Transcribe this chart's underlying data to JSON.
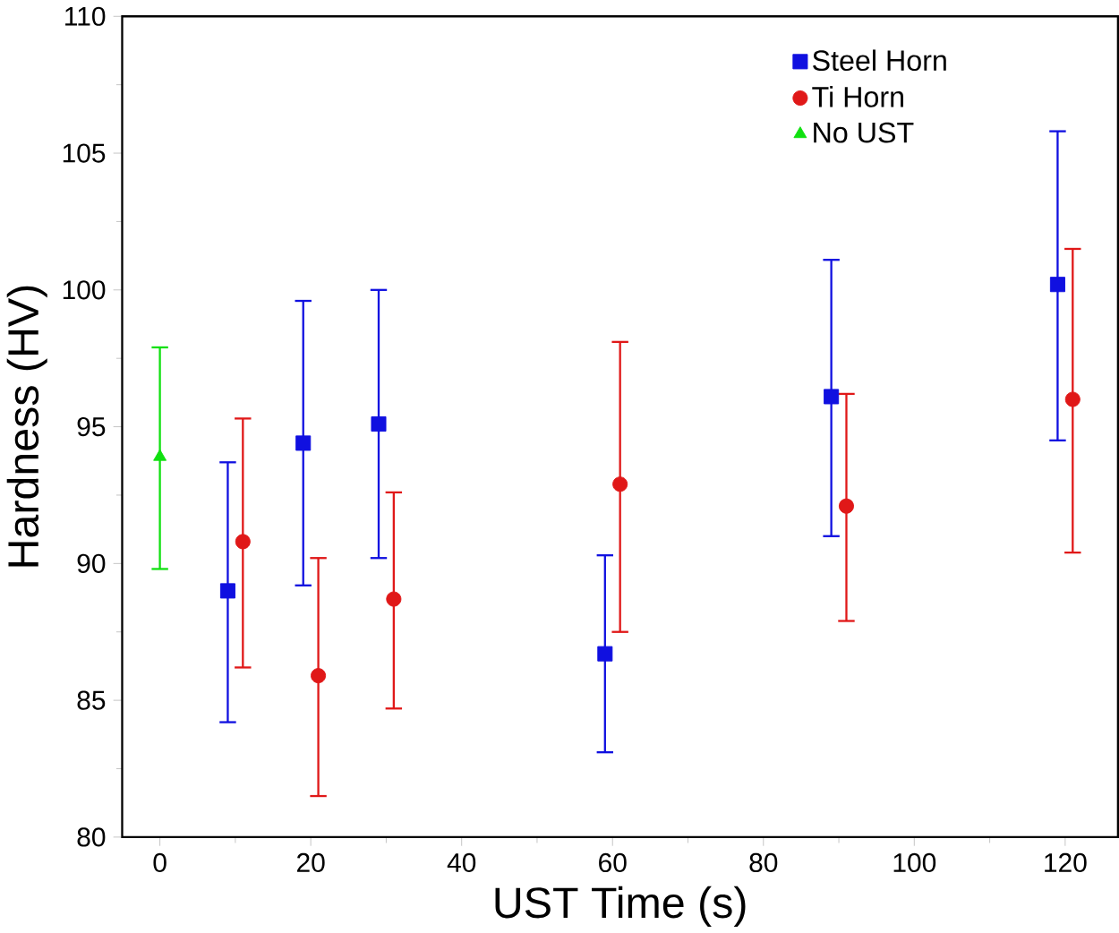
{
  "chart_data": {
    "type": "scatter",
    "xlabel": "UST Time (s)",
    "ylabel": "Hardness (HV)",
    "xlim": [
      -5,
      127
    ],
    "ylim": [
      80,
      110
    ],
    "xticks": [
      0,
      20,
      40,
      60,
      80,
      100,
      120
    ],
    "yticks": [
      80,
      85,
      90,
      95,
      100,
      105,
      110
    ],
    "legend": "top right",
    "grid": false,
    "series": [
      {
        "name": "Steel Horn",
        "color": "#1010e0",
        "marker": "square",
        "x": [
          9,
          19,
          29,
          59,
          89,
          119
        ],
        "values": [
          89.0,
          94.4,
          95.1,
          86.7,
          96.1,
          100.2
        ],
        "errors": [
          [
            84.2,
            93.7
          ],
          [
            89.2,
            99.6
          ],
          [
            90.2,
            100.0
          ],
          [
            83.1,
            90.3
          ],
          [
            91.0,
            101.1
          ],
          [
            94.5,
            105.8
          ]
        ]
      },
      {
        "name": "Ti Horn",
        "color": "#e01818",
        "marker": "circle",
        "x": [
          11,
          21,
          31,
          61,
          91,
          121
        ],
        "values": [
          90.8,
          85.9,
          88.7,
          92.9,
          92.1,
          96.0
        ],
        "errors": [
          [
            86.2,
            95.3
          ],
          [
            81.5,
            90.2
          ],
          [
            84.7,
            92.6
          ],
          [
            87.5,
            98.1
          ],
          [
            87.9,
            96.2
          ],
          [
            90.4,
            101.5
          ]
        ]
      },
      {
        "name": "No UST",
        "color": "#10e010",
        "marker": "triangle",
        "x": [
          0
        ],
        "values": [
          93.9
        ],
        "errors": [
          [
            89.8,
            97.9
          ]
        ]
      }
    ]
  }
}
